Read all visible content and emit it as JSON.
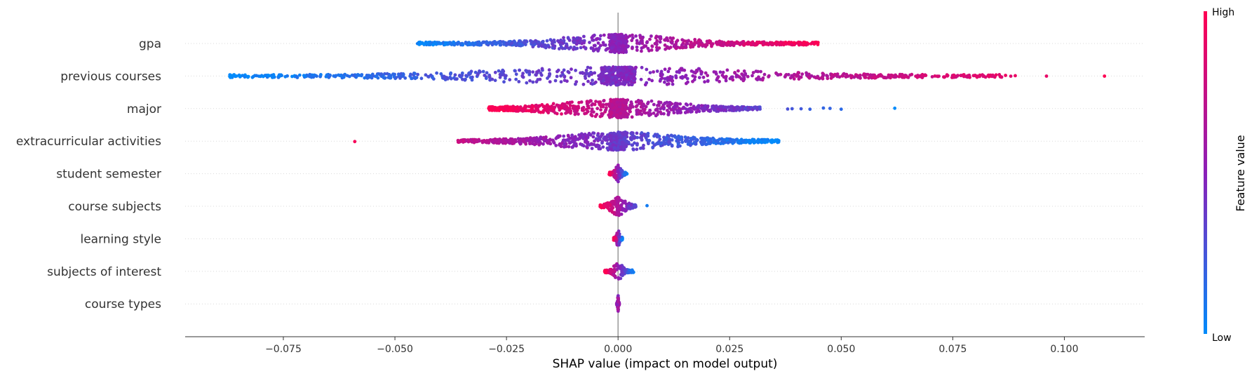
{
  "chart_data": {
    "type": "scatter",
    "subtype": "shap-beeswarm",
    "xlabel": "SHAP value (impact on model output)",
    "xlim": [
      -0.097,
      0.118
    ],
    "xticks": [
      -0.075,
      -0.05,
      -0.025,
      0.0,
      0.025,
      0.05,
      0.075,
      0.1
    ],
    "xtick_labels": [
      "−0.075",
      "−0.050",
      "−0.025",
      "0.000",
      "0.025",
      "0.050",
      "0.075",
      "0.100"
    ],
    "zero_line": true,
    "row_gridlines": "dotted",
    "colors": {
      "low": "#008bfb",
      "mid": "#8b1fb8",
      "high": "#ff0052",
      "axis": "#333333",
      "zero_line": "#999999",
      "grid": "#d9d9d9"
    },
    "colorbar": {
      "title": "Feature value",
      "high_label": "High",
      "low_label": "Low",
      "placement": "right"
    },
    "features": [
      {
        "name": "gpa",
        "spread": [
          -0.046,
          0.045
        ],
        "value_trend": "low-left-high-right",
        "extremes": []
      },
      {
        "name": "previous courses",
        "spread": [
          -0.087,
          0.109
        ],
        "value_trend": "low-left-high-right",
        "extremes": [
          -0.087,
          -0.0855,
          -0.083,
          -0.081,
          -0.0795,
          -0.076,
          -0.072,
          -0.068,
          0.071,
          0.0715,
          0.076,
          0.0775,
          0.0785,
          0.081,
          0.084,
          0.088,
          0.089,
          0.096,
          0.109
        ]
      },
      {
        "name": "major",
        "spread": [
          -0.029,
          0.062
        ],
        "value_trend": "high-left-low-right",
        "extremes": [
          -0.029,
          -0.027,
          0.038,
          0.039,
          0.041,
          0.043,
          0.046,
          0.0475,
          0.05,
          0.062
        ]
      },
      {
        "name": "extracurricular activities",
        "spread": [
          -0.059,
          0.036
        ],
        "value_trend": "high-left-low-right",
        "extremes": [
          -0.059,
          -0.0262,
          -0.0205,
          -0.018,
          -0.0165,
          -0.0145,
          0.0115,
          0.0135,
          0.0155,
          0.019,
          0.0205,
          0.022,
          0.036
        ]
      },
      {
        "name": "student semester",
        "spread": [
          -0.002,
          0.002
        ],
        "value_trend": "high-left-low-right",
        "extremes": []
      },
      {
        "name": "course subjects",
        "spread": [
          -0.004,
          0.007
        ],
        "value_trend": "high-left-low-right",
        "extremes": [
          -0.004,
          0.0065
        ]
      },
      {
        "name": "learning style",
        "spread": [
          -0.001,
          0.001
        ],
        "value_trend": "high-left-low-right",
        "extremes": []
      },
      {
        "name": "subjects of interest",
        "spread": [
          -0.003,
          0.0035
        ],
        "value_trend": "high-left-low-right",
        "extremes": [
          -0.003,
          0.0033
        ]
      },
      {
        "name": "course types",
        "spread": [
          -0.0003,
          0.0003
        ],
        "value_trend": "mixed",
        "extremes": []
      }
    ]
  }
}
